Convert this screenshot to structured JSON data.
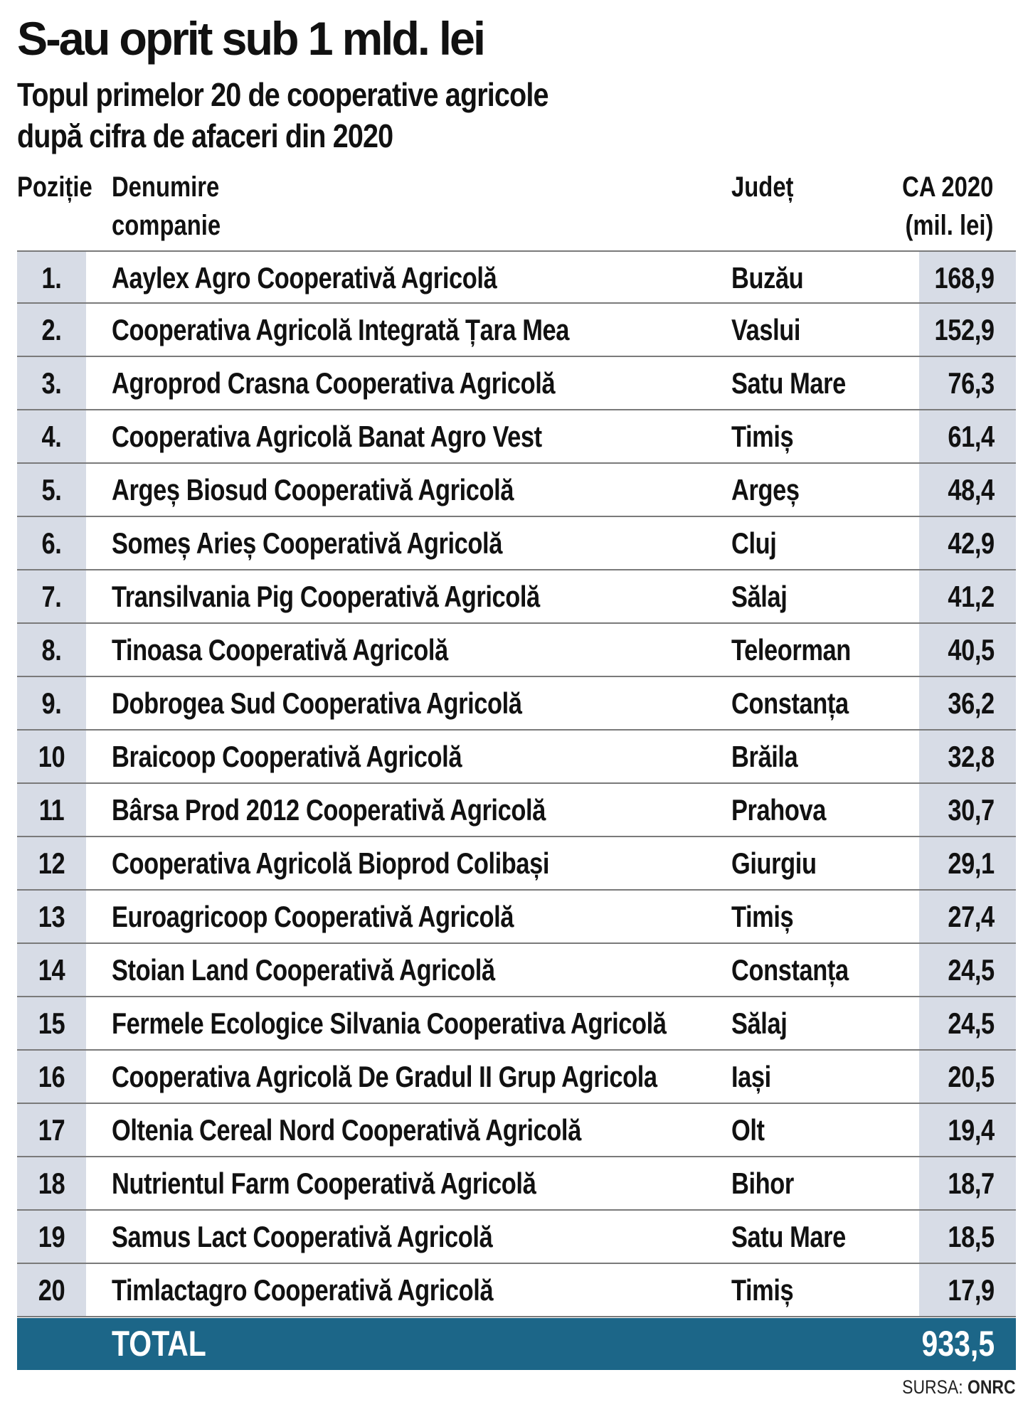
{
  "title": "S-au oprit sub 1 mld. lei",
  "subtitle": {
    "line1": "Topul primelor 20 de cooperative agricole",
    "line2": "după cifra de afaceri din 2020"
  },
  "columns": {
    "position": "Poziție",
    "name_line1": "Denumire",
    "name_line2": "companie",
    "county": "Județ",
    "value_line1": "CA 2020",
    "value_line2": "(mil. lei)"
  },
  "rows": [
    {
      "pos": "1.",
      "name": "Aaylex Agro Cooperativă Agricolă",
      "county": "Buzău",
      "value": "168,9"
    },
    {
      "pos": "2.",
      "name": "Cooperativa Agricolă Integrată Țara Mea",
      "county": "Vaslui",
      "value": "152,9"
    },
    {
      "pos": "3.",
      "name": "Agroprod Crasna Cooperativa Agricolă",
      "county": "Satu Mare",
      "value": "76,3"
    },
    {
      "pos": "4.",
      "name": "Cooperativa Agricolă Banat Agro Vest",
      "county": "Timiș",
      "value": "61,4"
    },
    {
      "pos": "5.",
      "name": "Argeș Biosud Cooperativă Agricolă",
      "county": "Argeș",
      "value": "48,4"
    },
    {
      "pos": "6.",
      "name": "Someș Arieș Cooperativă Agricolă",
      "county": "Cluj",
      "value": "42,9"
    },
    {
      "pos": "7.",
      "name": "Transilvania Pig Cooperativă Agricolă",
      "county": "Sălaj",
      "value": "41,2"
    },
    {
      "pos": "8.",
      "name": "Tinoasa Cooperativă Agricolă",
      "county": "Teleorman",
      "value": "40,5"
    },
    {
      "pos": "9.",
      "name": "Dobrogea Sud Cooperativa Agricolă",
      "county": "Constanța",
      "value": "36,2"
    },
    {
      "pos": "10",
      "name": "Braicoop Cooperativă Agricolă",
      "county": "Brăila",
      "value": "32,8"
    },
    {
      "pos": "11",
      "name": "Bârsa Prod 2012 Cooperativă Agricolă",
      "county": "Prahova",
      "value": "30,7"
    },
    {
      "pos": "12",
      "name": "Cooperativa Agricolă  Bioprod Colibași",
      "county": "Giurgiu",
      "value": "29,1"
    },
    {
      "pos": "13",
      "name": "Euroagricoop Cooperativă Agricolă",
      "county": "Timiș",
      "value": "27,4"
    },
    {
      "pos": "14",
      "name": "Stoian Land Cooperativă Agricolă",
      "county": "Constanța",
      "value": "24,5"
    },
    {
      "pos": "15",
      "name": "Fermele Ecologice Silvania Cooperativa Agricolă",
      "county": "Sălaj",
      "value": "24,5"
    },
    {
      "pos": "16",
      "name": "Cooperativa Agricolă De Gradul II Grup Agricola",
      "county": "Iași",
      "value": "20,5"
    },
    {
      "pos": "17",
      "name": "Oltenia Cereal Nord Cooperativă Agricolă",
      "county": "Olt",
      "value": "19,4"
    },
    {
      "pos": "18",
      "name": "Nutrientul Farm Cooperativă Agricolă",
      "county": "Bihor",
      "value": "18,7"
    },
    {
      "pos": "19",
      "name": "Samus Lact Cooperativă Agricolă",
      "county": "Satu Mare",
      "value": "18,5"
    },
    {
      "pos": "20",
      "name": "Timlactagro Cooperativă Agricolă",
      "county": "Timiș",
      "value": "17,9"
    }
  ],
  "total": {
    "label": "TOTAL",
    "value": "933,5"
  },
  "source": {
    "label": "SURSA:",
    "name": "ONRC"
  },
  "colors": {
    "position_column_bg": "#d7dce6",
    "value_column_bg": "#d7dce6",
    "total_bar_bg": "#1c6688",
    "total_text": "#ffffff",
    "row_divider": "#7a7a7a"
  }
}
